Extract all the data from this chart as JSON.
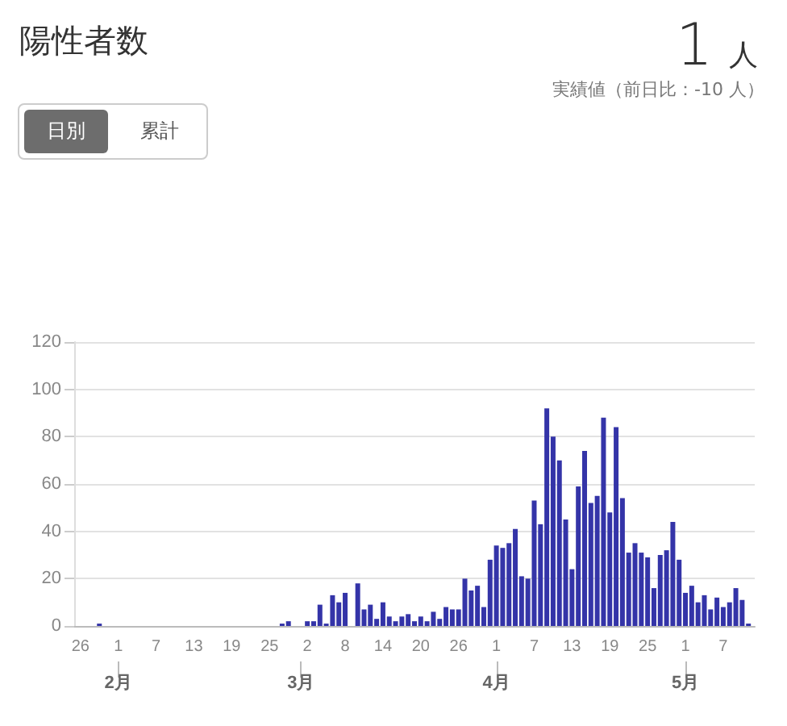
{
  "chart_data": {
    "type": "bar",
    "title": "陽性者数",
    "subtitle": "実績値（前日比：-10 人）",
    "annotations": [
      "1 人",
      "日別",
      "累計"
    ],
    "x": [
      "--01-26",
      "--01-27",
      "--01-28",
      "--01-29",
      "--01-30",
      "--01-31",
      "--02-01",
      "--02-02",
      "--02-03",
      "--02-04",
      "--02-05",
      "--02-06",
      "--02-07",
      "--02-08",
      "--02-09",
      "--02-10",
      "--02-11",
      "--02-12",
      "--02-13",
      "--02-14",
      "--02-15",
      "--02-16",
      "--02-17",
      "--02-18",
      "--02-19",
      "--02-20",
      "--02-21",
      "--02-22",
      "--02-23",
      "--02-24",
      "--02-25",
      "--02-26",
      "--02-27",
      "--02-28",
      "--02-29",
      "--03-01",
      "--03-02",
      "--03-03",
      "--03-04",
      "--03-05",
      "--03-06",
      "--03-07",
      "--03-08",
      "--03-09",
      "--03-10",
      "--03-11",
      "--03-12",
      "--03-13",
      "--03-14",
      "--03-15",
      "--03-16",
      "--03-17",
      "--03-18",
      "--03-19",
      "--03-20",
      "--03-21",
      "--03-22",
      "--03-23",
      "--03-24",
      "--03-25",
      "--03-26",
      "--03-27",
      "--03-28",
      "--03-29",
      "--03-30",
      "--03-31",
      "--04-01",
      "--04-02",
      "--04-03",
      "--04-04",
      "--04-05",
      "--04-06",
      "--04-07",
      "--04-08",
      "--04-09",
      "--04-10",
      "--04-11",
      "--04-12",
      "--04-13",
      "--04-14",
      "--04-15",
      "--04-16",
      "--04-17",
      "--04-18",
      "--04-19",
      "--04-20",
      "--04-21",
      "--04-22",
      "--04-23",
      "--04-24",
      "--04-25",
      "--04-26",
      "--04-27",
      "--04-28",
      "--04-29",
      "--04-30",
      "--05-01",
      "--05-02",
      "--05-03",
      "--05-04",
      "--05-05",
      "--05-06",
      "--05-07",
      "--05-08",
      "--05-09",
      "--05-10",
      "--05-11"
    ],
    "values": [
      0,
      0,
      0,
      1,
      0,
      0,
      0,
      0,
      0,
      0,
      0,
      0,
      0,
      0,
      0,
      0,
      0,
      0,
      0,
      0,
      0,
      0,
      0,
      0,
      0,
      0,
      0,
      0,
      0,
      0,
      0,
      0,
      1,
      2,
      0,
      0,
      2,
      2,
      9,
      1,
      13,
      10,
      14,
      0,
      18,
      7,
      9,
      3,
      10,
      4,
      2,
      4,
      5,
      2,
      4,
      2,
      6,
      3,
      8,
      7,
      7,
      20,
      15,
      17,
      8,
      28,
      34,
      33,
      35,
      41,
      21,
      20,
      53,
      43,
      92,
      80,
      70,
      45,
      24,
      59,
      74,
      52,
      55,
      88,
      48,
      84,
      54,
      31,
      35,
      31,
      29,
      16,
      30,
      32,
      44,
      28,
      14,
      17,
      10,
      13,
      7,
      12,
      8,
      10,
      16,
      11,
      1
    ],
    "color": "#3434a8",
    "xticks": [
      {
        "value": "--01-26",
        "label": "26"
      },
      {
        "value": "--02-01",
        "label": "1"
      },
      {
        "value": "--02-07",
        "label": "7"
      },
      {
        "value": "--02-13",
        "label": "13"
      },
      {
        "value": "--02-19",
        "label": "19"
      },
      {
        "value": "--02-25",
        "label": "25"
      },
      {
        "value": "--03-02",
        "label": "2"
      },
      {
        "value": "--03-08",
        "label": "8"
      },
      {
        "value": "--03-14",
        "label": "14"
      },
      {
        "value": "--03-20",
        "label": "20"
      },
      {
        "value": "--03-26",
        "label": "26"
      },
      {
        "value": "--04-01",
        "label": "1"
      },
      {
        "value": "--04-07",
        "label": "7"
      },
      {
        "value": "--04-13",
        "label": "13"
      },
      {
        "value": "--04-19",
        "label": "19"
      },
      {
        "value": "--04-25",
        "label": "25"
      },
      {
        "value": "--05-01",
        "label": "1"
      },
      {
        "value": "--05-07",
        "label": "7"
      }
    ],
    "x2ticks": [
      {
        "value": "--02-01",
        "label": "2月"
      },
      {
        "value": "--03-01",
        "label": "3月"
      },
      {
        "value": "--04-01",
        "label": "4月"
      },
      {
        "value": "--05-01",
        "label": "5月"
      }
    ],
    "xlim": [
      "--01-25",
      "--05-12"
    ],
    "x2lim": [
      "--01-25",
      "--05-12"
    ],
    "ylim": [
      0,
      120
    ],
    "yticks": [
      0,
      20,
      40,
      60,
      80,
      100,
      120
    ],
    "grid": "y"
  }
}
